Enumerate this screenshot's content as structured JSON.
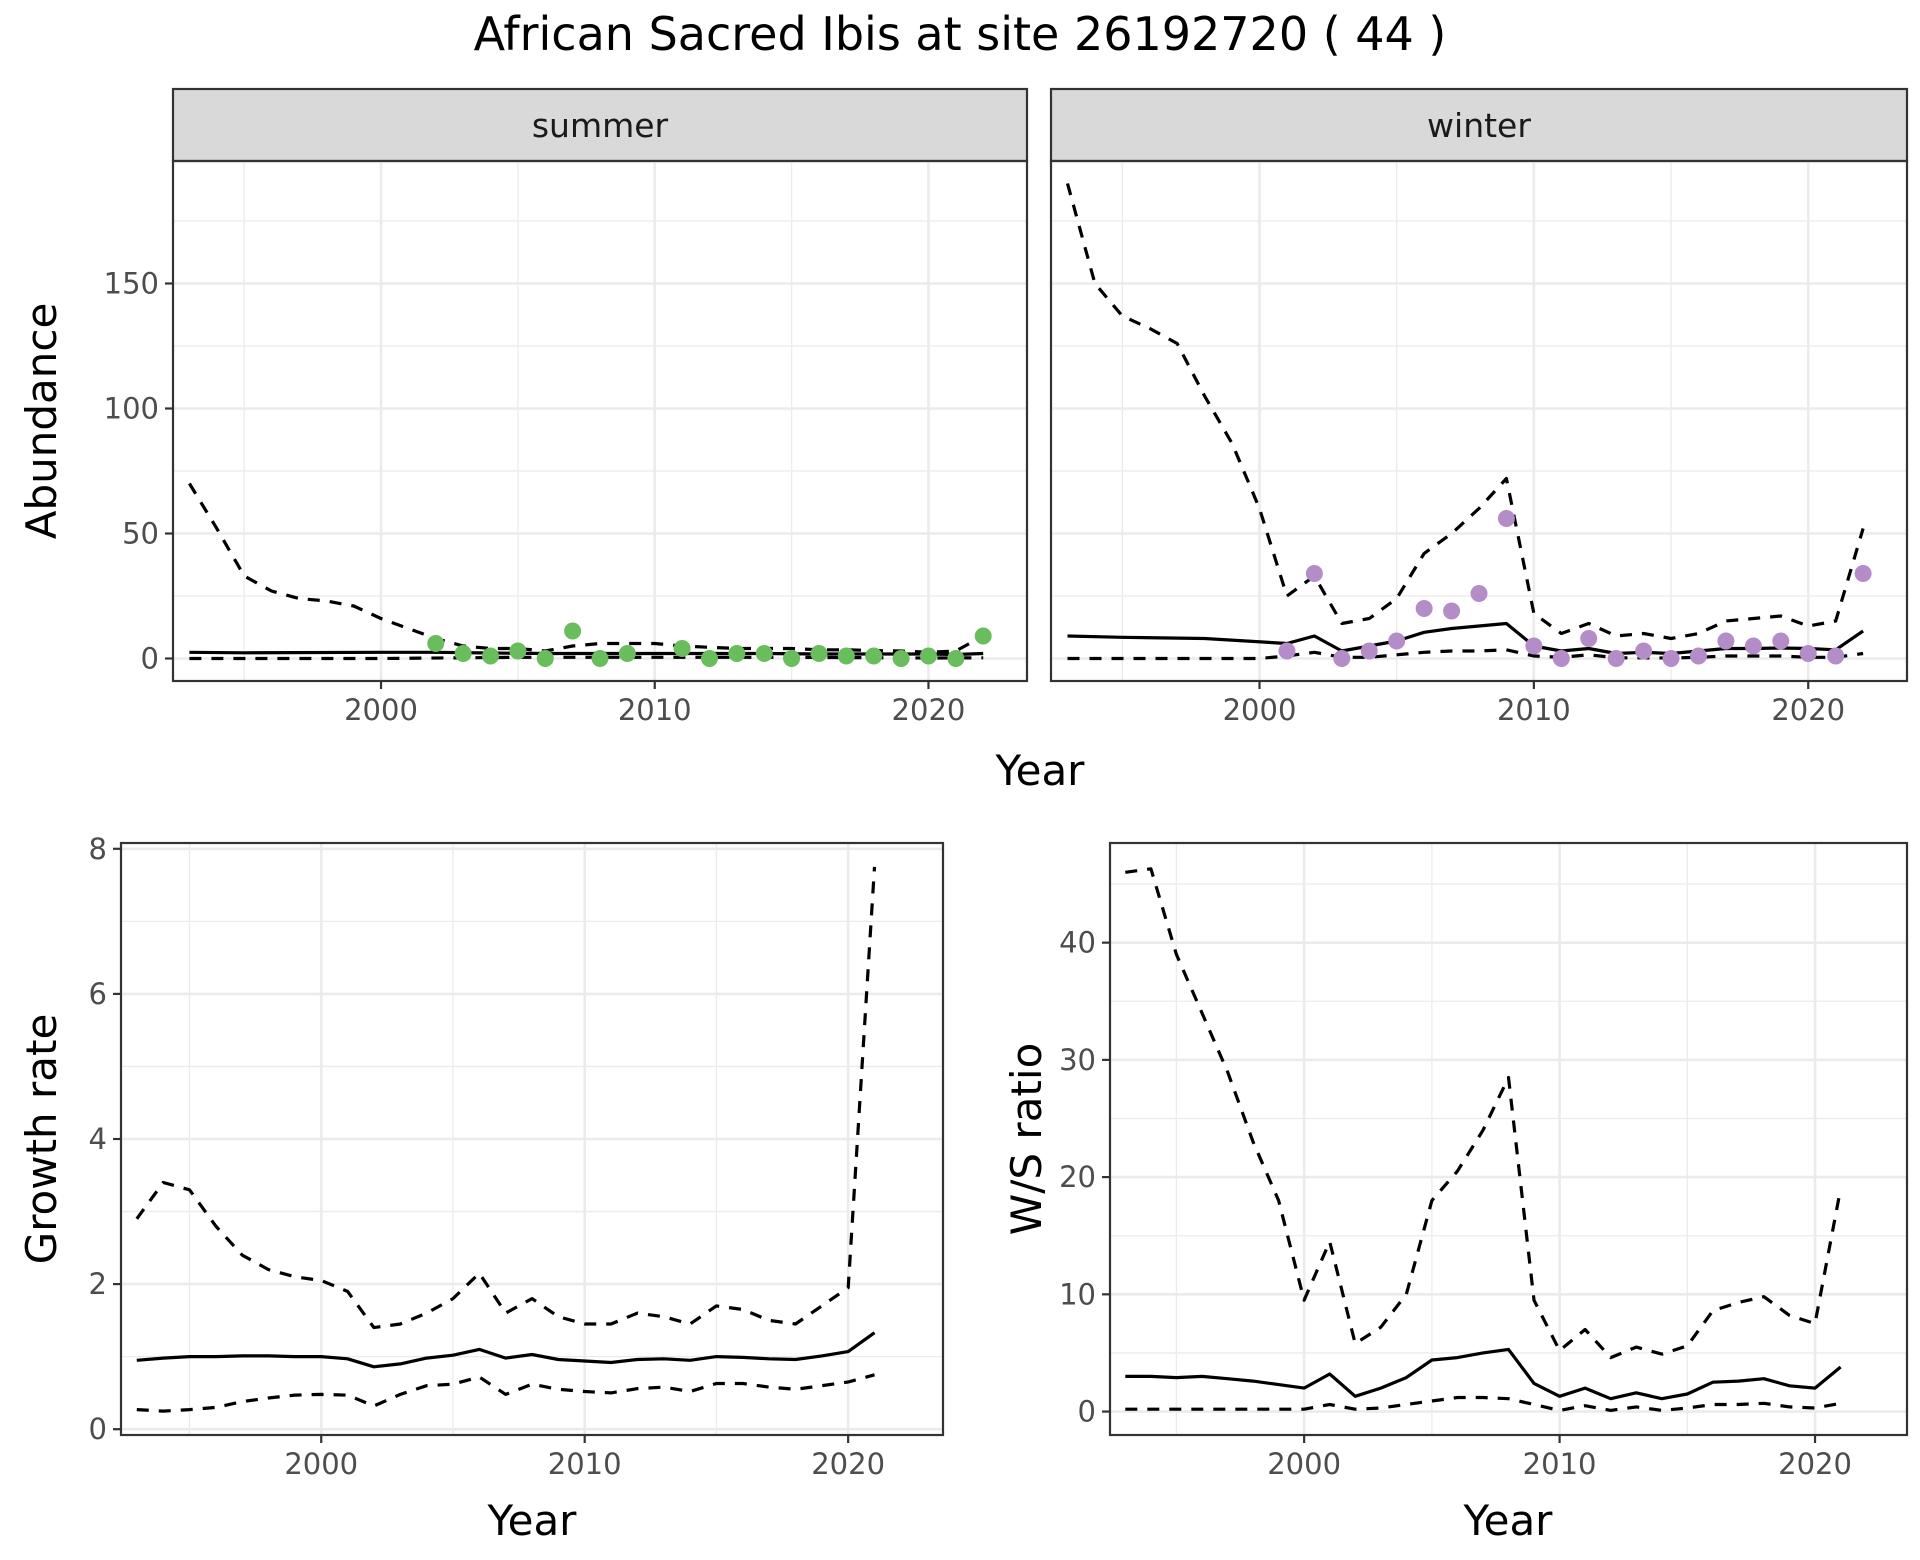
{
  "title": "African Sacred Ibis at site 26192720 ( 44 )",
  "colors": {
    "summer_points": "#6abd5c",
    "winter_points": "#b48cc8"
  },
  "chart_data": [
    {
      "type": "line",
      "panel": "abundance",
      "facets": [
        "summer",
        "winter"
      ],
      "xlabel": "Year",
      "ylabel": "Abundance",
      "xlim": [
        1992.4,
        2023.6
      ],
      "ylim": [
        -9,
        199
      ],
      "x_ticks": [
        2000,
        2010,
        2020
      ],
      "y_ticks": [
        0,
        50,
        100,
        150
      ],
      "grid": true,
      "series": {
        "summer": {
          "mean_x": [
            1993,
            1995,
            2000,
            2002,
            2004,
            2006,
            2008,
            2010,
            2012,
            2014,
            2016,
            2018,
            2020,
            2021,
            2022
          ],
          "mean_y": [
            2.5,
            2.3,
            2.5,
            2.5,
            2.2,
            2.0,
            2.0,
            2.0,
            2.0,
            2.0,
            1.8,
            1.8,
            1.8,
            1.6,
            2.0
          ],
          "upper_x": [
            1993,
            1994,
            1995,
            1996,
            1997,
            1998,
            1999,
            2000,
            2001,
            2002,
            2003,
            2004,
            2005,
            2006,
            2007,
            2008,
            2009,
            2010,
            2011,
            2012,
            2013,
            2014,
            2015,
            2016,
            2017,
            2018,
            2019,
            2020,
            2021,
            2022
          ],
          "upper_y": [
            70,
            52,
            33,
            27,
            24,
            23,
            21,
            16,
            12,
            8,
            5,
            4,
            4,
            3,
            5,
            6,
            6,
            6,
            5,
            4.5,
            4,
            4,
            4,
            3.5,
            3.5,
            3.2,
            3,
            2.5,
            3,
            9
          ],
          "lower_x": [
            1993,
            2000,
            2005,
            2010,
            2015,
            2020,
            2022
          ],
          "lower_y": [
            0,
            0,
            0.5,
            0.5,
            0.5,
            0.2,
            0.3
          ],
          "points_x": [
            2002,
            2003,
            2004,
            2005,
            2006,
            2007,
            2008,
            2009,
            2011,
            2012,
            2013,
            2014,
            2015,
            2016,
            2017,
            2018,
            2019,
            2020,
            2021,
            2022
          ],
          "points_y": [
            6,
            2,
            1,
            3,
            0,
            11,
            0,
            2,
            4,
            0,
            2,
            2,
            0,
            2,
            1,
            1,
            0,
            1,
            0,
            9
          ]
        },
        "winter": {
          "mean_x": [
            1993,
            1995,
            1998,
            2001,
            2002,
            2003,
            2005,
            2006,
            2007,
            2008,
            2009,
            2010,
            2011,
            2012,
            2013,
            2014,
            2015,
            2016,
            2017,
            2018,
            2019,
            2020,
            2021,
            2022
          ],
          "mean_y": [
            9,
            8.5,
            8,
            6,
            9,
            3,
            7,
            10.5,
            12,
            13,
            14,
            5,
            3,
            4,
            2,
            2.5,
            2,
            3,
            4,
            4,
            4.2,
            4,
            3.5,
            11
          ],
          "upper_x": [
            1993,
            1994,
            1995,
            1996,
            1997,
            1998,
            1999,
            2000,
            2001,
            2002,
            2003,
            2004,
            2005,
            2006,
            2007,
            2008,
            2009,
            2010,
            2011,
            2012,
            2013,
            2014,
            2015,
            2016,
            2017,
            2018,
            2019,
            2020,
            2021,
            2022
          ],
          "upper_y": [
            190,
            150,
            137,
            132,
            126,
            105,
            86,
            60,
            25,
            33,
            14,
            16,
            24,
            42,
            50,
            60,
            72,
            18,
            10,
            14,
            9,
            10,
            8,
            10,
            15,
            16,
            17,
            13,
            15,
            52
          ],
          "lower_x": [
            1993,
            2000,
            2001,
            2002,
            2003,
            2004,
            2005,
            2006,
            2007,
            2008,
            2009,
            2010,
            2011,
            2012,
            2013,
            2014,
            2015,
            2016,
            2017,
            2018,
            2019,
            2020,
            2021,
            2022
          ],
          "lower_y": [
            0,
            0,
            1,
            2.5,
            0.5,
            0.5,
            1.5,
            2.5,
            3,
            3,
            3.5,
            1,
            0.5,
            1.5,
            0.3,
            0.3,
            0.2,
            0.5,
            1,
            1,
            1,
            0.5,
            0.5,
            2
          ],
          "points_x": [
            2001,
            2002,
            2003,
            2004,
            2005,
            2006,
            2007,
            2008,
            2009,
            2010,
            2011,
            2012,
            2013,
            2014,
            2015,
            2016,
            2017,
            2018,
            2019,
            2020,
            2021,
            2022
          ],
          "points_y": [
            3,
            34,
            0,
            3,
            7,
            20,
            19,
            26,
            56,
            5,
            0,
            8,
            0,
            3,
            0,
            1,
            7,
            5,
            7,
            2,
            1,
            34
          ]
        }
      }
    },
    {
      "type": "line",
      "panel": "growth",
      "xlabel": "Year",
      "ylabel": "Growth rate",
      "xlim": [
        1992.4,
        2023.6
      ],
      "ylim": [
        -0.08,
        8.08
      ],
      "x_ticks": [
        2000,
        2010,
        2020
      ],
      "y_ticks": [
        0,
        2,
        4,
        6,
        8
      ],
      "grid": true,
      "series": {
        "mean_x": [
          1993,
          1994,
          1995,
          1996,
          1997,
          1998,
          1999,
          2000,
          2001,
          2002,
          2003,
          2004,
          2005,
          2006,
          2007,
          2008,
          2009,
          2010,
          2011,
          2012,
          2013,
          2014,
          2015,
          2016,
          2017,
          2018,
          2019,
          2020,
          2021
        ],
        "mean_y": [
          0.95,
          0.98,
          1.0,
          1.0,
          1.01,
          1.01,
          1.0,
          1.0,
          0.97,
          0.86,
          0.9,
          0.98,
          1.02,
          1.1,
          0.98,
          1.03,
          0.96,
          0.94,
          0.92,
          0.96,
          0.97,
          0.95,
          1.0,
          0.99,
          0.97,
          0.96,
          1.01,
          1.07,
          1.33
        ],
        "upper_x": [
          1993,
          1994,
          1995,
          1996,
          1997,
          1998,
          1999,
          2000,
          2001,
          2002,
          2003,
          2004,
          2005,
          2006,
          2007,
          2008,
          2009,
          2010,
          2011,
          2012,
          2013,
          2014,
          2015,
          2016,
          2017,
          2018,
          2019,
          2020,
          2021
        ],
        "upper_y": [
          2.9,
          3.4,
          3.3,
          2.8,
          2.4,
          2.2,
          2.1,
          2.05,
          1.9,
          1.4,
          1.45,
          1.6,
          1.8,
          2.15,
          1.6,
          1.8,
          1.55,
          1.45,
          1.45,
          1.6,
          1.55,
          1.45,
          1.7,
          1.65,
          1.5,
          1.45,
          1.7,
          1.95,
          7.75
        ],
        "lower_x": [
          1993,
          1994,
          1995,
          1996,
          1997,
          1998,
          1999,
          2000,
          2001,
          2002,
          2003,
          2004,
          2005,
          2006,
          2007,
          2008,
          2009,
          2010,
          2011,
          2012,
          2013,
          2014,
          2015,
          2016,
          2017,
          2018,
          2019,
          2020,
          2021
        ],
        "lower_y": [
          0.27,
          0.25,
          0.27,
          0.3,
          0.38,
          0.43,
          0.47,
          0.48,
          0.47,
          0.32,
          0.48,
          0.6,
          0.62,
          0.72,
          0.48,
          0.62,
          0.55,
          0.52,
          0.5,
          0.56,
          0.58,
          0.52,
          0.63,
          0.63,
          0.58,
          0.55,
          0.6,
          0.65,
          0.75
        ]
      }
    },
    {
      "type": "line",
      "panel": "ratio",
      "xlabel": "Year",
      "ylabel": "W/S ratio",
      "xlim": [
        1992.4,
        2023.6
      ],
      "ylim": [
        -2,
        48.5
      ],
      "x_ticks": [
        2000,
        2010,
        2020
      ],
      "y_ticks": [
        0,
        10,
        20,
        30,
        40
      ],
      "grid": true,
      "series": {
        "mean_x": [
          1993,
          1994,
          1995,
          1996,
          1997,
          1998,
          1999,
          2000,
          2001,
          2002,
          2003,
          2004,
          2005,
          2006,
          2007,
          2008,
          2009,
          2010,
          2011,
          2012,
          2013,
          2014,
          2015,
          2016,
          2017,
          2018,
          2019,
          2020,
          2021
        ],
        "mean_y": [
          3.0,
          3.0,
          2.9,
          3.0,
          2.8,
          2.6,
          2.3,
          2.0,
          3.2,
          1.3,
          2.0,
          2.9,
          4.4,
          4.6,
          5.0,
          5.3,
          2.4,
          1.3,
          2.0,
          1.1,
          1.6,
          1.1,
          1.5,
          2.5,
          2.6,
          2.8,
          2.2,
          2.0,
          3.8
        ],
        "upper_x": [
          1993,
          1994,
          1995,
          1996,
          1997,
          1998,
          1999,
          2000,
          2001,
          2002,
          2003,
          2004,
          2005,
          2006,
          2007,
          2008,
          2009,
          2010,
          2011,
          2012,
          2013,
          2014,
          2015,
          2016,
          2017,
          2018,
          2019,
          2020,
          2021
        ],
        "upper_y": [
          46,
          46.3,
          39,
          34,
          29,
          23,
          18,
          9.5,
          14.5,
          5.8,
          7.2,
          10,
          18,
          20.5,
          24,
          28.5,
          9.5,
          5.2,
          7,
          4.6,
          5.5,
          4.9,
          5.6,
          8.6,
          9.3,
          9.8,
          8.2,
          7.5,
          19
        ],
        "lower_x": [
          1993,
          1994,
          1995,
          1996,
          1997,
          1998,
          1999,
          2000,
          2001,
          2002,
          2003,
          2004,
          2005,
          2006,
          2007,
          2008,
          2009,
          2010,
          2011,
          2012,
          2013,
          2014,
          2015,
          2016,
          2017,
          2018,
          2019,
          2020,
          2021
        ],
        "lower_y": [
          0.2,
          0.2,
          0.2,
          0.2,
          0.2,
          0.2,
          0.2,
          0.2,
          0.6,
          0.2,
          0.3,
          0.6,
          0.9,
          1.2,
          1.2,
          1.1,
          0.6,
          0.1,
          0.5,
          0.1,
          0.4,
          0.1,
          0.3,
          0.6,
          0.6,
          0.7,
          0.4,
          0.3,
          0.7
        ]
      }
    }
  ]
}
